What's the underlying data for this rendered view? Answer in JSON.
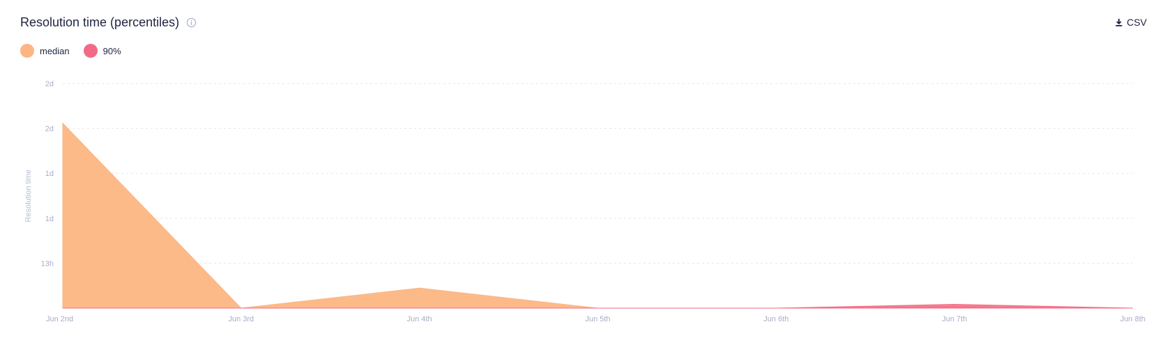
{
  "header": {
    "title": "Resolution time (percentiles)",
    "csv_label": "CSV"
  },
  "colors": {
    "median": "#fdb683",
    "p90": "#f26b86",
    "grid": "#e3e6ee",
    "tick": "#a6aec6"
  },
  "chart_data": {
    "type": "area",
    "title": "Resolution time (percentiles)",
    "xlabel": "",
    "ylabel": "Resolution time",
    "categories": [
      "Jun 2nd",
      "Jun 3rd",
      "Jun 4th",
      "Jun 5th",
      "Jun 6th",
      "Jun 7th",
      "Jun 8th"
    ],
    "y_ticks": [
      "2d",
      "2d",
      "1d",
      "1d",
      "13h"
    ],
    "y_tick_values_hours": [
      65,
      52,
      39,
      26,
      13
    ],
    "ylim_hours": [
      0,
      65
    ],
    "legend_position": "top-left",
    "grid": true,
    "series": [
      {
        "name": "median",
        "values_hours": [
          53.5,
          0,
          5.8,
          0,
          0,
          0.5,
          0
        ]
      },
      {
        "name": "90%",
        "values_hours": [
          0,
          0,
          0,
          0,
          0,
          1.1,
          0
        ]
      }
    ]
  }
}
